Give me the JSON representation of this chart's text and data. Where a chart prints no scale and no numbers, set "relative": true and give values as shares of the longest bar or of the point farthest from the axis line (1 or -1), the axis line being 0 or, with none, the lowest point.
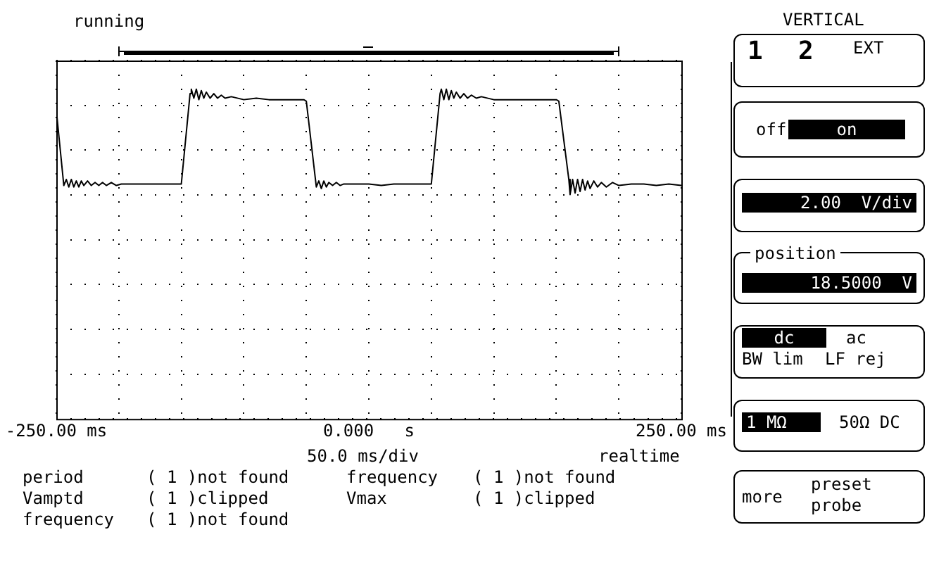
{
  "chart_data": {
    "type": "line",
    "title": "running",
    "relative": true,
    "color": "#000000",
    "grid": true,
    "xlim": [
      -250,
      250
    ],
    "xticks": [
      {
        "value": -250,
        "label": "-250.00 ms"
      },
      {
        "value": -200,
        "label": null
      },
      {
        "value": -150,
        "label": null
      },
      {
        "value": -100,
        "label": null
      },
      {
        "value": -50,
        "label": null
      },
      {
        "value": 0,
        "label": "0.000   s"
      },
      {
        "value": 50,
        "label": null
      },
      {
        "value": 100,
        "label": null
      },
      {
        "value": 150,
        "label": null
      },
      {
        "value": 200,
        "label": null
      },
      {
        "value": 250,
        "label": "250.00 ms"
      }
    ],
    "x": [
      -250,
      -244,
      -242,
      -240,
      -238,
      -236,
      -234,
      -232,
      -230,
      -228,
      -225,
      -222,
      -219,
      -216,
      -213,
      -210,
      -206,
      -202,
      -198,
      -190,
      -180,
      -170,
      -160,
      -150,
      -143,
      -142,
      -140,
      -138,
      -136,
      -134,
      -132,
      -130,
      -127,
      -124,
      -121,
      -118,
      -115,
      -110,
      -100,
      -90,
      -80,
      -70,
      -60,
      -52,
      -50,
      -42,
      -40,
      -38,
      -36,
      -34,
      -32,
      -29,
      -26,
      -23,
      -20,
      -10,
      0,
      10,
      20,
      30,
      40,
      50,
      57,
      58,
      60,
      62,
      64,
      66,
      68,
      70,
      73,
      76,
      79,
      82,
      86,
      90,
      100,
      110,
      120,
      130,
      140,
      150,
      152,
      160,
      161,
      163,
      165,
      167,
      169,
      171,
      173,
      175,
      177,
      180,
      183,
      186,
      190,
      195,
      200,
      210,
      220,
      230,
      240,
      250
    ],
    "values": [
      0.86,
      0.36,
      0.4,
      0.35,
      0.4,
      0.35,
      0.39,
      0.35,
      0.39,
      0.36,
      0.39,
      0.36,
      0.38,
      0.36,
      0.38,
      0.36,
      0.38,
      0.36,
      0.37,
      0.37,
      0.37,
      0.37,
      0.37,
      0.37,
      0.97,
      1.0,
      0.94,
      1.0,
      0.93,
      0.99,
      0.94,
      0.98,
      0.94,
      0.97,
      0.94,
      0.96,
      0.94,
      0.95,
      0.93,
      0.94,
      0.93,
      0.93,
      0.93,
      0.93,
      0.92,
      0.35,
      0.39,
      0.34,
      0.39,
      0.35,
      0.38,
      0.36,
      0.38,
      0.36,
      0.37,
      0.37,
      0.37,
      0.36,
      0.37,
      0.37,
      0.37,
      0.37,
      0.97,
      1.0,
      0.93,
      1.0,
      0.93,
      0.99,
      0.94,
      0.98,
      0.94,
      0.97,
      0.94,
      0.96,
      0.94,
      0.95,
      0.93,
      0.93,
      0.93,
      0.93,
      0.93,
      0.93,
      0.92,
      0.4,
      0.3,
      0.4,
      0.31,
      0.4,
      0.32,
      0.4,
      0.33,
      0.39,
      0.34,
      0.39,
      0.35,
      0.38,
      0.35,
      0.38,
      0.36,
      0.37,
      0.37,
      0.36,
      0.37,
      0.36
    ],
    "annotations": [
      "50.0 ms/div",
      "realtime",
      "period",
      "( 1 )not found",
      "frequency",
      "( 1 )not found",
      "Vamptd",
      "( 1 )clipped",
      "Vmax",
      "( 1 )clipped",
      "frequency",
      "( 1 )not found",
      "VERTICAL",
      "1",
      "2",
      "EXT",
      "off",
      "on",
      "2.00  V/div",
      "position",
      "18.5000  V",
      "dc",
      "ac",
      "BW lim",
      "LF rej",
      "1 MΩ",
      "50Ω DC",
      "more",
      "preset",
      "probe"
    ]
  }
}
